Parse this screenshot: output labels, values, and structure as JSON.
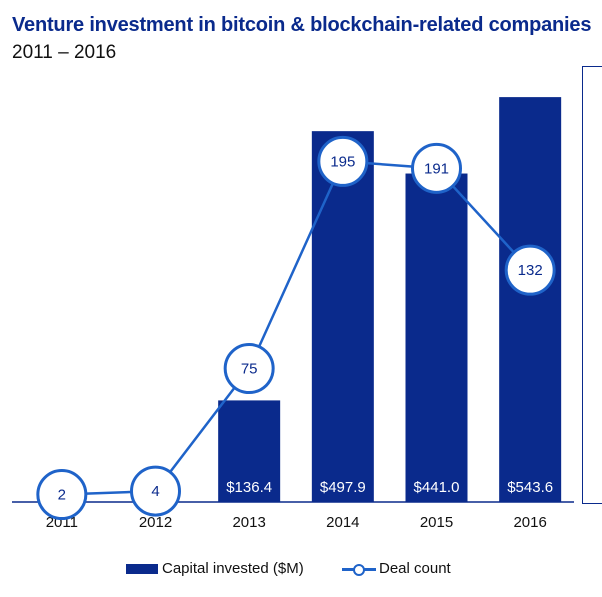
{
  "chart_data": {
    "type": "bar",
    "title": "Venture investment in bitcoin & blockchain-related companies",
    "subtitle": "2011 – 2016",
    "categories": [
      "2011",
      "2012",
      "2013",
      "2014",
      "2015",
      "2016"
    ],
    "series": [
      {
        "name": "Capital invested ($M)",
        "type": "bar",
        "values": [
          2,
          2,
          136.4,
          497.9,
          441.0,
          543.6
        ],
        "labels": [
          "",
          "",
          "$136.4",
          "$497.9",
          "$441.0",
          "$543.6"
        ],
        "color": "#0a2a8c"
      },
      {
        "name": "Deal count",
        "type": "line",
        "values": [
          2,
          4,
          75,
          195,
          191,
          132
        ],
        "color": "#1f63c9"
      }
    ],
    "bar_ylim": [
      0,
      580
    ],
    "line_ylim": [
      0,
      230
    ],
    "grid": false,
    "legend_position": "bottom"
  }
}
